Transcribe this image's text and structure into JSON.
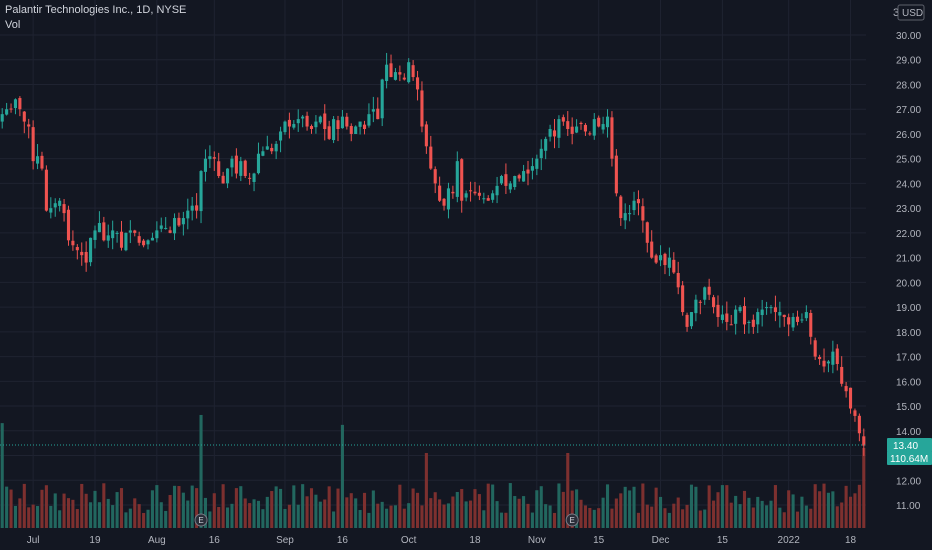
{
  "legend": {
    "title": "Palantir Technologies Inc., 1D, NYSE",
    "volume_label": "Vol"
  },
  "currency": "USD",
  "scale_marker": "3",
  "price_tag": {
    "value": 13.4,
    "label": "13.40",
    "color": "#26a69a"
  },
  "volume_tag": {
    "label": "110.64M",
    "color": "#26a69a"
  },
  "colors": {
    "up": "#26a69a",
    "down": "#ef5350",
    "up_vol": "#22675f",
    "down_vol": "#7d302f",
    "background": "#131722",
    "grid": "#1f2331",
    "text": "#b2b5be"
  },
  "earnings_marker": "E",
  "chart_data": {
    "type": "candlestick",
    "y_ticks": [
      "30.00",
      "29.00",
      "28.00",
      "27.00",
      "26.00",
      "25.00",
      "24.00",
      "23.00",
      "22.00",
      "21.00",
      "20.00",
      "19.00",
      "18.00",
      "17.00",
      "16.00",
      "15.00",
      "14.00",
      "13.00",
      "12.00",
      "11.00"
    ],
    "y_tick_values": [
      30,
      29,
      28,
      27,
      26,
      25,
      24,
      23,
      22,
      21,
      20,
      19,
      18,
      17,
      16,
      15,
      14,
      13,
      12,
      11
    ],
    "ylim": [
      10.2,
      30.9
    ],
    "x_ticks": [
      {
        "label": "Jul",
        "index": 7
      },
      {
        "label": "19",
        "index": 21
      },
      {
        "label": "Aug",
        "index": 35
      },
      {
        "label": "16",
        "index": 48
      },
      {
        "label": "Sep",
        "index": 64
      },
      {
        "label": "16",
        "index": 77
      },
      {
        "label": "Oct",
        "index": 92
      },
      {
        "label": "18",
        "index": 107
      },
      {
        "label": "Nov",
        "index": 121
      },
      {
        "label": "15",
        "index": 135
      },
      {
        "label": "Dec",
        "index": 149
      },
      {
        "label": "15",
        "index": 163
      },
      {
        "label": "2022",
        "index": 178
      },
      {
        "label": "18",
        "index": 192
      }
    ],
    "earnings_index": [
      45,
      129
    ],
    "closes": [
      26.8,
      27.0,
      27.0,
      27.4,
      27.0,
      26.5,
      26.3,
      24.9,
      25.1,
      24.6,
      22.9,
      23.0,
      23.2,
      23.3,
      22.8,
      21.7,
      21.5,
      21.3,
      21.1,
      20.8,
      21.8,
      22.1,
      22.4,
      21.7,
      21.9,
      22.1,
      22.0,
      21.4,
      22.0,
      22.1,
      22.0,
      21.6,
      21.5,
      21.7,
      21.8,
      22.1,
      22.3,
      22.2,
      22.0,
      22.6,
      22.3,
      22.6,
      22.9,
      23.1,
      22.9,
      24.5,
      25.0,
      25.1,
      25.0,
      24.3,
      24.0,
      24.6,
      25.0,
      24.4,
      24.9,
      24.3,
      24.2,
      24.4,
      25.2,
      25.3,
      25.5,
      25.3,
      25.6,
      26.1,
      26.5,
      26.3,
      26.4,
      26.6,
      26.7,
      26.3,
      26.2,
      26.5,
      26.7,
      26.2,
      25.8,
      26.6,
      26.2,
      26.7,
      26.3,
      26.0,
      26.3,
      26.5,
      26.2,
      26.8,
      27.0,
      26.6,
      28.2,
      28.8,
      28.3,
      28.5,
      28.4,
      28.2,
      28.9,
      28.3,
      27.8,
      26.3,
      25.5,
      24.6,
      24.0,
      23.3,
      23.1,
      23.8,
      23.6,
      24.9,
      23.3,
      23.6,
      23.7,
      23.6,
      23.5,
      23.4,
      23.3,
      23.6,
      23.9,
      24.3,
      23.9,
      24.0,
      24.3,
      24.2,
      24.5,
      24.4,
      24.7,
      25.0,
      25.4,
      25.8,
      26.2,
      25.9,
      26.6,
      26.5,
      26.2,
      26.0,
      26.3,
      26.4,
      26.1,
      26.0,
      26.6,
      26.3,
      26.4,
      26.7,
      25.0,
      23.6,
      22.6,
      22.8,
      22.8,
      23.3,
      23.2,
      22.5,
      21.6,
      21.0,
      20.8,
      21.1,
      20.7,
      21.0,
      20.4,
      19.8,
      18.8,
      18.2,
      18.8,
      19.3,
      19.2,
      19.8,
      19.5,
      19.0,
      18.6,
      18.7,
      18.4,
      18.3,
      18.9,
      19.0,
      18.3,
      18.4,
      18.2,
      18.8,
      18.9,
      19.0,
      19.0,
      18.8,
      18.8,
      18.6,
      18.3,
      18.6,
      18.4,
      18.5,
      18.8,
      17.8,
      17.0,
      16.9,
      16.6,
      16.8,
      17.2,
      16.7,
      15.9,
      15.6,
      14.9,
      14.6,
      13.9,
      13.4
    ]
  }
}
